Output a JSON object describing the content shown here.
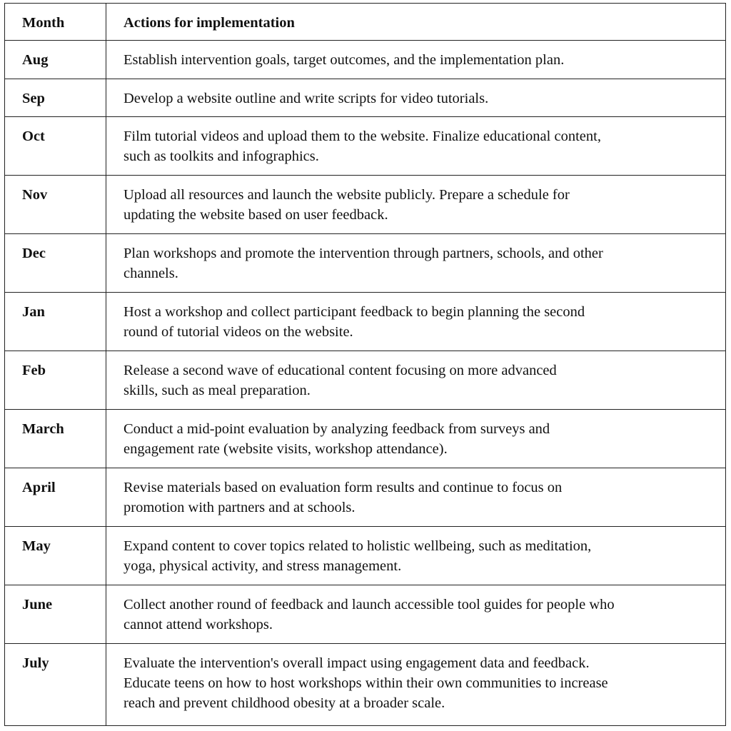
{
  "table": {
    "headers": {
      "month": "Month",
      "actions": "Actions for implementation"
    },
    "rows": [
      {
        "month": "Aug",
        "lines": [
          "Establish intervention goals, target outcomes, and the implementation plan."
        ]
      },
      {
        "month": "Sep",
        "lines": [
          "Develop a website outline and write scripts for video tutorials."
        ]
      },
      {
        "month": "Oct",
        "lines": [
          "Film tutorial videos and upload them to the website. Finalize educational content,",
          "such as toolkits and infographics."
        ]
      },
      {
        "month": "Nov",
        "lines": [
          "Upload all resources and launch the website publicly. Prepare a schedule for",
          "updating the website based on user feedback."
        ]
      },
      {
        "month": "Dec",
        "lines": [
          "Plan workshops and promote the intervention through partners, schools, and other",
          "channels."
        ]
      },
      {
        "month": "Jan",
        "lines": [
          "Host a workshop and collect participant feedback to begin planning the second",
          "round of tutorial videos on the website."
        ]
      },
      {
        "month": "Feb",
        "lines": [
          "Release a second wave of educational content focusing on more advanced",
          "skills, such as meal preparation."
        ]
      },
      {
        "month": "March",
        "lines": [
          "Conduct a mid-point evaluation by analyzing feedback from surveys and",
          "engagement rate (website visits, workshop attendance)."
        ]
      },
      {
        "month": "April",
        "lines": [
          "Revise materials based on evaluation form results and continue to focus on",
          "promotion with partners and at schools."
        ]
      },
      {
        "month": "May",
        "lines": [
          "Expand content to cover topics related to holistic wellbeing, such as meditation,",
          "yoga, physical activity, and stress management."
        ]
      },
      {
        "month": "June",
        "lines": [
          "Collect another round of feedback and launch accessible tool guides for people who",
          "cannot attend workshops."
        ]
      },
      {
        "month": "July",
        "lines": [
          "Evaluate the intervention's overall impact using engagement data and feedback.",
          "Educate teens on how to host workshops within their own communities to increase",
          "reach and prevent childhood obesity at a broader scale."
        ]
      }
    ]
  }
}
